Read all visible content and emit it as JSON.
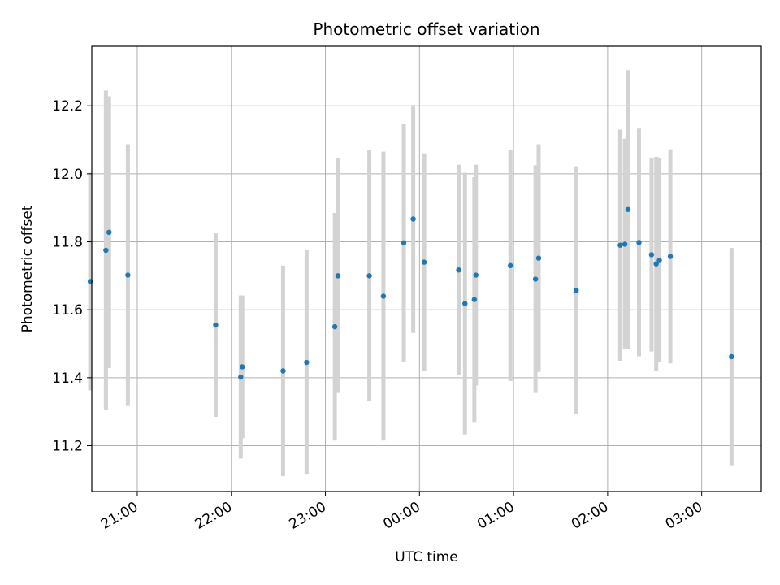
{
  "chart_data": {
    "type": "scatter",
    "title": "Photometric offset variation",
    "xlabel": "UTC time",
    "ylabel": "Photometric offset",
    "x_axis": "time",
    "xlim": [
      "20:31",
      "03:38"
    ],
    "ylim": [
      11.065,
      12.375
    ],
    "x_ticks": [
      "21:00",
      "22:00",
      "23:00",
      "00:00",
      "01:00",
      "02:00",
      "03:00"
    ],
    "y_ticks": [
      11.2,
      11.4,
      11.6,
      11.8,
      12.0,
      12.2
    ],
    "y_tick_labels": [
      "11.2",
      "11.4",
      "11.6",
      "11.8",
      "12.0",
      "12.2"
    ],
    "grid": true,
    "point_color": "#1f77b4",
    "errorbar_color": "#d3d3d3",
    "points": [
      {
        "t": "20:30",
        "y": 11.683,
        "err": 0.32
      },
      {
        "t": "20:40",
        "y": 11.775,
        "err": 0.47
      },
      {
        "t": "20:42",
        "y": 11.828,
        "err": 0.4
      },
      {
        "t": "20:54",
        "y": 11.702,
        "err": 0.385
      },
      {
        "t": "21:50",
        "y": 11.555,
        "err": 0.27
      },
      {
        "t": "22:06",
        "y": 11.402,
        "err": 0.24
      },
      {
        "t": "22:07",
        "y": 11.432,
        "err": 0.21
      },
      {
        "t": "22:33",
        "y": 11.42,
        "err": 0.31
      },
      {
        "t": "22:48",
        "y": 11.445,
        "err": 0.33
      },
      {
        "t": "23:06",
        "y": 11.55,
        "err": 0.335
      },
      {
        "t": "23:08",
        "y": 11.7,
        "err": 0.345
      },
      {
        "t": "23:28",
        "y": 11.7,
        "err": 0.37
      },
      {
        "t": "23:37",
        "y": 11.64,
        "err": 0.425
      },
      {
        "t": "23:50",
        "y": 11.797,
        "err": 0.35
      },
      {
        "t": "23:56",
        "y": 11.867,
        "err": 0.335
      },
      {
        "t": "00:03",
        "y": 11.74,
        "err": 0.32
      },
      {
        "t": "00:25",
        "y": 11.717,
        "err": 0.31
      },
      {
        "t": "00:29",
        "y": 11.618,
        "err": 0.385
      },
      {
        "t": "00:35",
        "y": 11.63,
        "err": 0.36
      },
      {
        "t": "00:36",
        "y": 11.702,
        "err": 0.325
      },
      {
        "t": "00:58",
        "y": 11.73,
        "err": 0.34
      },
      {
        "t": "01:14",
        "y": 11.69,
        "err": 0.335
      },
      {
        "t": "01:16",
        "y": 11.752,
        "err": 0.335
      },
      {
        "t": "01:40",
        "y": 11.657,
        "err": 0.365
      },
      {
        "t": "02:08",
        "y": 11.79,
        "err": 0.34
      },
      {
        "t": "02:11",
        "y": 11.793,
        "err": 0.31
      },
      {
        "t": "02:13",
        "y": 11.895,
        "err": 0.41
      },
      {
        "t": "02:20",
        "y": 11.798,
        "err": 0.335
      },
      {
        "t": "02:28",
        "y": 11.762,
        "err": 0.285
      },
      {
        "t": "02:31",
        "y": 11.735,
        "err": 0.315
      },
      {
        "t": "02:33",
        "y": 11.745,
        "err": 0.3
      },
      {
        "t": "02:40",
        "y": 11.757,
        "err": 0.315
      },
      {
        "t": "03:19",
        "y": 11.462,
        "err": 0.32
      }
    ]
  }
}
